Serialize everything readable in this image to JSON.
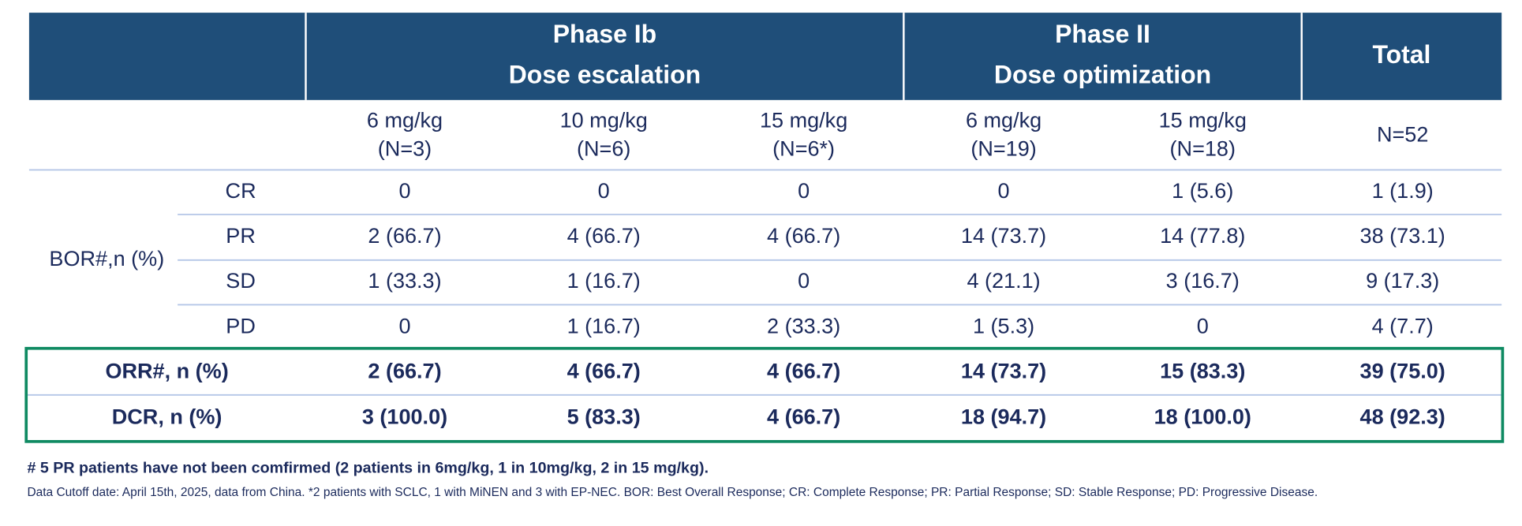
{
  "table": {
    "groups": [
      {
        "lines": [
          "Phase Ib",
          "Dose escalation"
        ]
      },
      {
        "lines": [
          "Phase II",
          "Dose optimization"
        ]
      },
      {
        "lines": [
          "Total"
        ]
      }
    ],
    "subheaders": [
      [
        "6 mg/kg",
        "(N=3)"
      ],
      [
        "10 mg/kg",
        "(N=6)"
      ],
      [
        "15 mg/kg",
        "(N=6*)"
      ],
      [
        "6 mg/kg",
        "(N=19)"
      ],
      [
        "15 mg/kg",
        "(N=18)"
      ],
      [
        "N=52"
      ]
    ],
    "row_group_label": "BOR#,n (%)",
    "rows": [
      {
        "label": "CR",
        "cells": [
          "0",
          "0",
          "0",
          "0",
          "1 (5.6)",
          "1 (1.9)"
        ]
      },
      {
        "label": "PR",
        "cells": [
          "2 (66.7)",
          "4 (66.7)",
          "4 (66.7)",
          "14 (73.7)",
          "14 (77.8)",
          "38 (73.1)"
        ]
      },
      {
        "label": "SD",
        "cells": [
          "1 (33.3)",
          "1 (16.7)",
          "0",
          "4 (21.1)",
          "3 (16.7)",
          "9 (17.3)"
        ]
      },
      {
        "label": "PD",
        "cells": [
          "0",
          "1 (16.7)",
          "2 (33.3)",
          "1 (5.3)",
          "0",
          "4 (7.7)"
        ]
      }
    ],
    "summary_rows": [
      {
        "label": "ORR#, n (%)",
        "cells": [
          "2 (66.7)",
          "4 (66.7)",
          "4 (66.7)",
          "14 (73.7)",
          "15 (83.3)",
          "39 (75.0)"
        ]
      },
      {
        "label": "DCR, n (%)",
        "cells": [
          "3 (100.0)",
          "5 (83.3)",
          "4 (66.7)",
          "18 (94.7)",
          "18 (100.0)",
          "48 (92.3)"
        ]
      }
    ]
  },
  "footnotes": [
    "# 5 PR patients have not been comfirmed (2 patients in 6mg/kg, 1 in 10mg/kg, 2 in 15 mg/kg).",
    "Data Cutoff date: April 15th, 2025, data from China. *2 patients with SCLC, 1 with MiNEN and 3 with EP-NEC. BOR: Best Overall Response; CR: Complete Response; PR: Partial Response; SD: Stable Response; PD: Progressive Disease."
  ]
}
